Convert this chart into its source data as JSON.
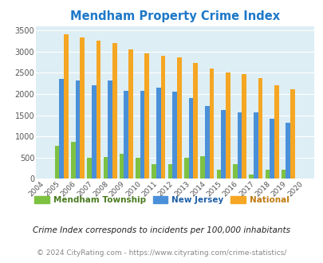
{
  "title": "Mendham Property Crime Index",
  "years": [
    2004,
    2005,
    2006,
    2007,
    2008,
    2009,
    2010,
    2011,
    2012,
    2013,
    2014,
    2015,
    2016,
    2017,
    2018,
    2019,
    2020
  ],
  "mendham": [
    0,
    775,
    875,
    500,
    510,
    600,
    500,
    340,
    340,
    500,
    540,
    215,
    355,
    100,
    215,
    215,
    0
  ],
  "nj": [
    0,
    2360,
    2320,
    2200,
    2330,
    2070,
    2080,
    2160,
    2060,
    1910,
    1720,
    1620,
    1560,
    1560,
    1410,
    1320,
    0
  ],
  "national": [
    0,
    3420,
    3340,
    3270,
    3210,
    3060,
    2960,
    2910,
    2870,
    2740,
    2600,
    2500,
    2470,
    2380,
    2210,
    2120,
    0
  ],
  "mendham_color": "#7dc242",
  "nj_color": "#4a90d9",
  "national_color": "#f5a623",
  "bg_color": "#ddeef5",
  "title_color": "#1e78c8",
  "ylim": [
    0,
    3600
  ],
  "yticks": [
    0,
    500,
    1000,
    1500,
    2000,
    2500,
    3000,
    3500
  ],
  "legend_mendham": "Mendham Township",
  "legend_nj": "New Jersey",
  "legend_national": "National",
  "legend_text_colors": [
    "#4a7c20",
    "#1e5fa8",
    "#c07a10"
  ],
  "footnote1": "Crime Index corresponds to incidents per 100,000 inhabitants",
  "footnote2": "© 2024 CityRating.com - https://www.cityrating.com/crime-statistics/",
  "bar_width": 0.28
}
